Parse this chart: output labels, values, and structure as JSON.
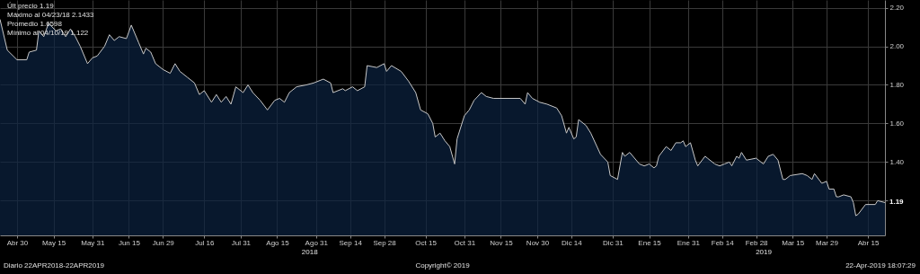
{
  "chart_data": {
    "type": "area",
    "grid": true,
    "xlim": [
      "2018-04-23",
      "2019-04-22"
    ],
    "ylim": [
      1.02,
      2.24
    ],
    "xticks": [
      {
        "value": "2018-04-30",
        "label": "Abr 30"
      },
      {
        "value": "2018-05-15",
        "label": "May 15"
      },
      {
        "value": "2018-05-31",
        "label": "May 31"
      },
      {
        "value": "2018-06-15",
        "label": "Jun 15"
      },
      {
        "value": "2018-06-29",
        "label": "Jun 29"
      },
      {
        "value": "2018-07-16",
        "label": "Jul 16"
      },
      {
        "value": "2018-07-31",
        "label": "Jul 31"
      },
      {
        "value": "2018-08-15",
        "label": "Ago 15"
      },
      {
        "value": "2018-08-31",
        "label": "Ago 31"
      },
      {
        "value": "2018-09-14",
        "label": "Sep 14"
      },
      {
        "value": "2018-09-28",
        "label": "Sep 28"
      },
      {
        "value": "2018-10-15",
        "label": "Oct 15"
      },
      {
        "value": "2018-10-31",
        "label": "Oct 31"
      },
      {
        "value": "2018-11-15",
        "label": "Nov 15"
      },
      {
        "value": "2018-11-30",
        "label": "Nov 30"
      },
      {
        "value": "2018-12-14",
        "label": "Dic 14"
      },
      {
        "value": "2018-12-31",
        "label": "Dic 31"
      },
      {
        "value": "2019-01-15",
        "label": "Ene 15"
      },
      {
        "value": "2019-01-31",
        "label": "Ene 31"
      },
      {
        "value": "2019-02-14",
        "label": "Feb 14"
      },
      {
        "value": "2019-02-28",
        "label": "Feb 28"
      },
      {
        "value": "2019-03-15",
        "label": "Mar 15"
      },
      {
        "value": "2019-03-29",
        "label": "Mar 29"
      },
      {
        "value": "2019-04-15",
        "label": "Abr 15"
      }
    ],
    "yticks": [
      {
        "value": 1.2,
        "label": null
      },
      {
        "value": 1.4,
        "label": "1.40"
      },
      {
        "value": 1.6,
        "label": "1.60"
      },
      {
        "value": 1.8,
        "label": "1.80"
      },
      {
        "value": 2.0,
        "label": "2.00"
      },
      {
        "value": 2.2,
        "label": "2.20"
      }
    ],
    "x": [
      "2018-04-23",
      "2018-04-26",
      "2018-04-30",
      "2018-05-04",
      "2018-05-05",
      "2018-05-08",
      "2018-05-09",
      "2018-05-11",
      "2018-05-13",
      "2018-05-16",
      "2018-05-18",
      "2018-05-20",
      "2018-05-22",
      "2018-05-24",
      "2018-05-26",
      "2018-05-29",
      "2018-05-31",
      "2018-06-02",
      "2018-06-05",
      "2018-06-07",
      "2018-06-09",
      "2018-06-11",
      "2018-06-14",
      "2018-06-16",
      "2018-06-19",
      "2018-06-21",
      "2018-06-22",
      "2018-06-24",
      "2018-06-26",
      "2018-06-29",
      "2018-07-02",
      "2018-07-04",
      "2018-07-06",
      "2018-07-09",
      "2018-07-12",
      "2018-07-14",
      "2018-07-16",
      "2018-07-19",
      "2018-07-21",
      "2018-07-23",
      "2018-07-25",
      "2018-07-27",
      "2018-07-29",
      "2018-08-01",
      "2018-08-03",
      "2018-08-05",
      "2018-08-08",
      "2018-08-11",
      "2018-08-14",
      "2018-08-16",
      "2018-08-18",
      "2018-08-20",
      "2018-08-23",
      "2018-08-27",
      "2018-08-30",
      "2018-09-03",
      "2018-09-06",
      "2018-09-07",
      "2018-09-11",
      "2018-09-12",
      "2018-09-15",
      "2018-09-17",
      "2018-09-20",
      "2018-09-21",
      "2018-09-25",
      "2018-09-28",
      "2018-09-29",
      "2018-10-01",
      "2018-10-05",
      "2018-10-08",
      "2018-10-11",
      "2018-10-13",
      "2018-10-16",
      "2018-10-18",
      "2018-10-19",
      "2018-10-21",
      "2018-10-23",
      "2018-10-25",
      "2018-10-27",
      "2018-10-28",
      "2018-10-31",
      "2018-11-02",
      "2018-11-04",
      "2018-11-07",
      "2018-11-09",
      "2018-11-12",
      "2018-11-23",
      "2018-11-25",
      "2018-11-26",
      "2018-11-28",
      "2018-12-01",
      "2018-12-04",
      "2018-12-08",
      "2018-12-10",
      "2018-12-12",
      "2018-12-13",
      "2018-12-15",
      "2018-12-16",
      "2018-12-17",
      "2018-12-20",
      "2018-12-22",
      "2018-12-26",
      "2018-12-29",
      "2018-12-30",
      "2019-01-02",
      "2019-01-04",
      "2019-01-05",
      "2019-01-07",
      "2019-01-11",
      "2019-01-13",
      "2019-01-15",
      "2019-01-17",
      "2019-01-18",
      "2019-01-19",
      "2019-01-22",
      "2019-01-24",
      "2019-01-26",
      "2019-01-28",
      "2019-01-29",
      "2019-01-30",
      "2019-02-01",
      "2019-02-03",
      "2019-02-04",
      "2019-02-07",
      "2019-02-08",
      "2019-02-11",
      "2019-02-13",
      "2019-02-15",
      "2019-02-17",
      "2019-02-18",
      "2019-02-20",
      "2019-02-21",
      "2019-02-22",
      "2019-02-24",
      "2019-02-28",
      "2019-03-03",
      "2019-03-05",
      "2019-03-07",
      "2019-03-09",
      "2019-03-11",
      "2019-03-12",
      "2019-03-14",
      "2019-03-19",
      "2019-03-21",
      "2019-03-23",
      "2019-03-24",
      "2019-03-27",
      "2019-03-29",
      "2019-03-30",
      "2019-04-01",
      "2019-04-02",
      "2019-04-03",
      "2019-04-05",
      "2019-04-08",
      "2019-04-09",
      "2019-04-10",
      "2019-04-11",
      "2019-04-14",
      "2019-04-18",
      "2019-04-19",
      "2019-04-22"
    ],
    "series": [
      {
        "color": "#0b2240",
        "values": [
          2.14,
          1.98,
          1.93,
          1.93,
          1.97,
          1.98,
          2.08,
          2.05,
          2.12,
          2.08,
          2.09,
          2.05,
          2.09,
          2.05,
          2.0,
          1.91,
          1.94,
          1.95,
          2.0,
          2.06,
          2.03,
          2.05,
          2.04,
          2.11,
          2.02,
          1.96,
          1.99,
          1.97,
          1.91,
          1.88,
          1.86,
          1.91,
          1.87,
          1.84,
          1.81,
          1.75,
          1.77,
          1.71,
          1.75,
          1.71,
          1.74,
          1.7,
          1.79,
          1.76,
          1.8,
          1.76,
          1.72,
          1.67,
          1.72,
          1.73,
          1.71,
          1.76,
          1.79,
          1.8,
          1.81,
          1.83,
          1.81,
          1.76,
          1.78,
          1.77,
          1.79,
          1.77,
          1.79,
          1.9,
          1.89,
          1.91,
          1.87,
          1.9,
          1.87,
          1.82,
          1.76,
          1.67,
          1.65,
          1.6,
          1.53,
          1.55,
          1.51,
          1.48,
          1.39,
          1.52,
          1.64,
          1.67,
          1.72,
          1.76,
          1.74,
          1.73,
          1.73,
          1.7,
          1.76,
          1.73,
          1.71,
          1.7,
          1.68,
          1.64,
          1.55,
          1.58,
          1.52,
          1.53,
          1.62,
          1.59,
          1.55,
          1.44,
          1.4,
          1.33,
          1.31,
          1.45,
          1.43,
          1.45,
          1.39,
          1.38,
          1.39,
          1.37,
          1.38,
          1.43,
          1.48,
          1.46,
          1.5,
          1.5,
          1.51,
          1.48,
          1.5,
          1.41,
          1.38,
          1.43,
          1.42,
          1.39,
          1.38,
          1.39,
          1.4,
          1.38,
          1.43,
          1.42,
          1.45,
          1.41,
          1.42,
          1.39,
          1.43,
          1.44,
          1.41,
          1.31,
          1.31,
          1.33,
          1.34,
          1.33,
          1.31,
          1.34,
          1.29,
          1.3,
          1.26,
          1.26,
          1.22,
          1.22,
          1.23,
          1.22,
          1.19,
          1.122,
          1.13,
          1.18,
          1.18,
          1.2,
          1.19
        ]
      }
    ],
    "annotations": [
      "Últ precio 1.19",
      "Máximo al 04/23/18 2.1433",
      "Promedio 1.6598",
      "Mínimo al 04/10/19 1.122",
      "2018",
      "2019",
      {
        "text": "1.19",
        "x": "2019-04-22",
        "y": 1.19
      },
      "Diario 22APR2018-22APR2019",
      "Copyright© 2019",
      "22-Apr-2019 18:07:29"
    ]
  }
}
